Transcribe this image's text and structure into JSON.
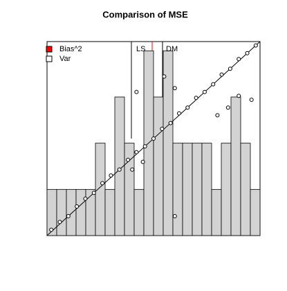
{
  "chart_data": [
    {
      "type": "histogram",
      "title": "Comparison of MSE",
      "bins": [
        0,
        1,
        2,
        3,
        4,
        5,
        6,
        7,
        8,
        9,
        10,
        11,
        12,
        13,
        14,
        15,
        16,
        17,
        18,
        19,
        20,
        21,
        22
      ],
      "values": [
        1,
        1,
        1,
        1,
        1,
        2,
        1,
        3,
        2,
        1,
        4,
        3,
        4,
        2,
        2,
        2,
        2,
        1,
        2,
        3,
        2,
        1
      ],
      "color": "#d3d3d3",
      "xlim": [
        0,
        22
      ],
      "ylim": [
        0,
        4.2
      ],
      "legend": [
        {
          "name": "Bias^2",
          "color": "#ff0000"
        },
        {
          "name": "Var",
          "color": "#ffffff"
        }
      ],
      "legend_position": "top-left"
    },
    {
      "type": "scatter",
      "xlim": [
        0,
        1
      ],
      "ylim": [
        0,
        1
      ],
      "color": "#000000",
      "annotations": [
        "LS",
        "DM"
      ],
      "x": [
        0.02,
        0.06,
        0.1,
        0.14,
        0.18,
        0.22,
        0.26,
        0.3,
        0.34,
        0.38,
        0.42,
        0.46,
        0.5,
        0.54,
        0.58,
        0.62,
        0.66,
        0.7,
        0.74,
        0.78,
        0.82,
        0.86,
        0.9,
        0.94,
        0.98,
        0.4,
        0.45,
        0.55,
        0.6,
        0.8,
        0.85,
        0.9,
        0.96,
        0.42,
        0.6
      ],
      "y": [
        0.03,
        0.07,
        0.1,
        0.15,
        0.19,
        0.22,
        0.27,
        0.31,
        0.34,
        0.39,
        0.43,
        0.46,
        0.5,
        0.55,
        0.58,
        0.63,
        0.66,
        0.71,
        0.74,
        0.78,
        0.83,
        0.86,
        0.91,
        0.94,
        0.98,
        0.34,
        0.38,
        0.82,
        0.76,
        0.62,
        0.66,
        0.72,
        0.7,
        0.74,
        0.1
      ]
    }
  ]
}
